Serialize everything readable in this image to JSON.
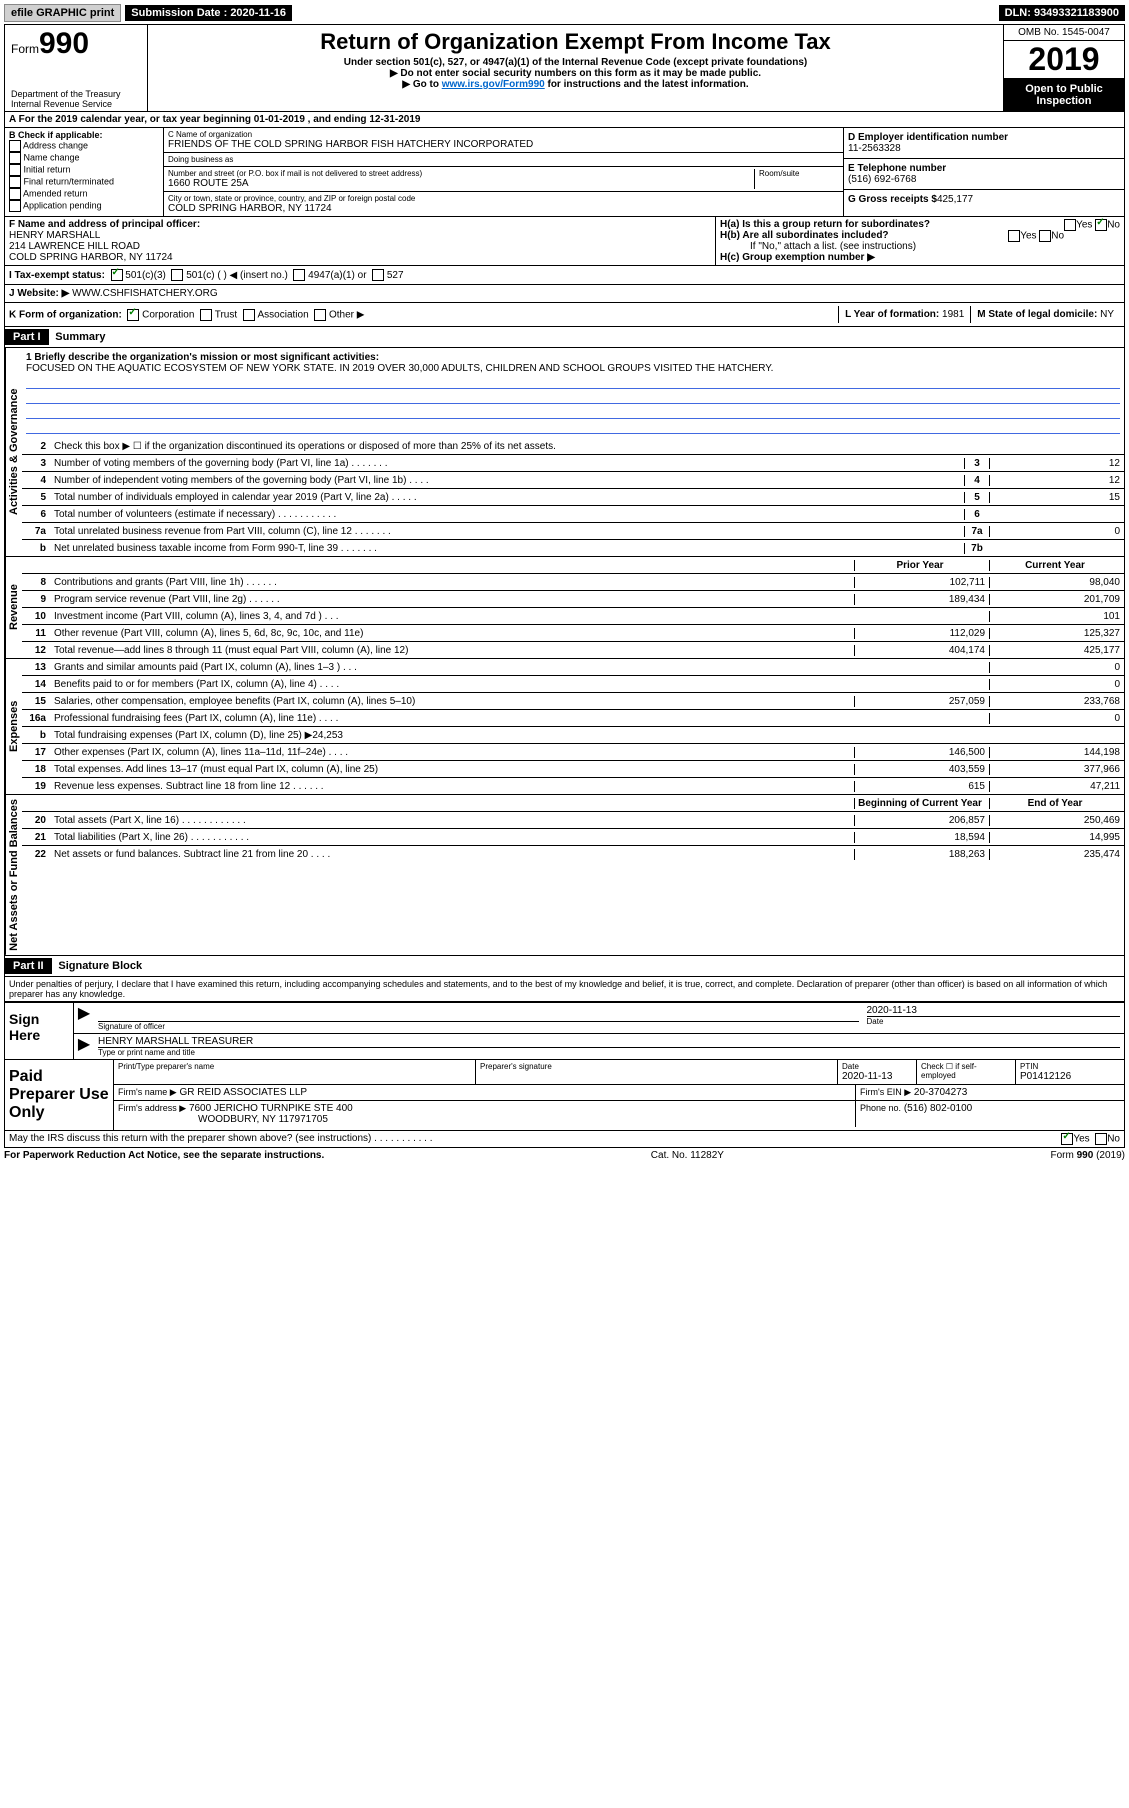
{
  "topbar": {
    "efile": "efile GRAPHIC print",
    "submission": "Submission Date : 2020-11-16",
    "dln": "DLN: 93493321183900"
  },
  "header": {
    "form_label": "Form",
    "form_num": "990",
    "dept": "Department of the Treasury\nInternal Revenue Service",
    "title": "Return of Organization Exempt From Income Tax",
    "sub1": "Under section 501(c), 527, or 4947(a)(1) of the Internal Revenue Code (except private foundations)",
    "sub2": "▶ Do not enter social security numbers on this form as it may be made public.",
    "sub3_pre": "▶ Go to ",
    "sub3_link": "www.irs.gov/Form990",
    "sub3_post": " for instructions and the latest information.",
    "omb": "OMB No. 1545-0047",
    "year": "2019",
    "open": "Open to Public Inspection"
  },
  "row_a": "A For the 2019 calendar year, or tax year beginning 01-01-2019    , and ending 12-31-2019",
  "col_b": {
    "label": "B Check if applicable:",
    "opts": [
      "Address change",
      "Name change",
      "Initial return",
      "Final return/terminated",
      "Amended return",
      "Application pending"
    ]
  },
  "col_c": {
    "name_label": "C Name of organization",
    "name": "FRIENDS OF THE COLD SPRING HARBOR FISH HATCHERY INCORPORATED",
    "dba_label": "Doing business as",
    "dba": "",
    "addr_label": "Number and street (or P.O. box if mail is not delivered to street address)",
    "room_label": "Room/suite",
    "addr": "1660 ROUTE 25A",
    "city_label": "City or town, state or province, country, and ZIP or foreign postal code",
    "city": "COLD SPRING HARBOR, NY  11724"
  },
  "col_d": {
    "ein_label": "D Employer identification number",
    "ein": "11-2563328",
    "phone_label": "E Telephone number",
    "phone": "(516) 692-6768",
    "gross_label": "G Gross receipts $",
    "gross": "425,177"
  },
  "col_f": {
    "label": "F Name and address of principal officer:",
    "name": "HENRY MARSHALL",
    "addr1": "214 LAWRENCE HILL ROAD",
    "addr2": "COLD SPRING HARBOR, NY  11724"
  },
  "col_h": {
    "ha": "H(a)  Is this a group return for subordinates?",
    "hb": "H(b)  Are all subordinates included?",
    "hb_note": "If \"No,\" attach a list. (see instructions)",
    "hc": "H(c)  Group exemption number ▶",
    "yes": "Yes",
    "no": "No"
  },
  "row_i": {
    "label": "I  Tax-exempt status:",
    "opt1": "501(c)(3)",
    "opt2": "501(c) (   ) ◀ (insert no.)",
    "opt3": "4947(a)(1) or",
    "opt4": "527"
  },
  "row_j": {
    "label": "J  Website: ▶",
    "val": "WWW.CSHFISHATCHERY.ORG"
  },
  "row_k": {
    "label": "K Form of organization:",
    "opts": [
      "Corporation",
      "Trust",
      "Association",
      "Other ▶"
    ],
    "l_label": "L Year of formation:",
    "l_val": "1981",
    "m_label": "M State of legal domicile:",
    "m_val": "NY"
  },
  "part1": {
    "header": "Part I",
    "title": "Summary",
    "line1_label": "1  Briefly describe the organization's mission or most significant activities:",
    "line1_val": "FOCUSED ON THE AQUATIC ECOSYSTEM OF NEW YORK STATE. IN 2019 OVER 30,000 ADULTS, CHILDREN AND SCHOOL GROUPS VISITED THE HATCHERY.",
    "line2": "Check this box ▶ ☐  if the organization discontinued its operations or disposed of more than 25% of its net assets.",
    "sections": {
      "activities": "Activities & Governance",
      "revenue": "Revenue",
      "expenses": "Expenses",
      "netassets": "Net Assets or Fund Balances"
    },
    "col_prior": "Prior Year",
    "col_current": "Current Year",
    "col_begin": "Beginning of Current Year",
    "col_end": "End of Year",
    "lines_gov": [
      {
        "n": "3",
        "d": "Number of voting members of the governing body (Part VI, line 1a)  .    .    .    .    .    .    .",
        "box": "3",
        "v": "12"
      },
      {
        "n": "4",
        "d": "Number of independent voting members of the governing body (Part VI, line 1b)  .    .    .    .",
        "box": "4",
        "v": "12"
      },
      {
        "n": "5",
        "d": "Total number of individuals employed in calendar year 2019 (Part V, line 2a)  .    .    .    .    .",
        "box": "5",
        "v": "15"
      },
      {
        "n": "6",
        "d": "Total number of volunteers (estimate if necessary)    .    .    .    .    .    .    .    .    .    .    .",
        "box": "6",
        "v": ""
      },
      {
        "n": "7a",
        "d": "Total unrelated business revenue from Part VIII, column (C), line 12  .    .    .    .    .    .    .",
        "box": "7a",
        "v": "0"
      },
      {
        "n": "b",
        "d": "Net unrelated business taxable income from Form 990-T, line 39    .    .    .    .    .    .    .",
        "box": "7b",
        "v": ""
      }
    ],
    "lines_rev": [
      {
        "n": "8",
        "d": "Contributions and grants (Part VIII, line 1h)    .    .    .    .    .    .",
        "p": "102,711",
        "c": "98,040"
      },
      {
        "n": "9",
        "d": "Program service revenue (Part VIII, line 2g)    .    .    .    .    .    .",
        "p": "189,434",
        "c": "201,709"
      },
      {
        "n": "10",
        "d": "Investment income (Part VIII, column (A), lines 3, 4, and 7d )    .    .    .",
        "p": "",
        "c": "101"
      },
      {
        "n": "11",
        "d": "Other revenue (Part VIII, column (A), lines 5, 6d, 8c, 9c, 10c, and 11e)",
        "p": "112,029",
        "c": "125,327"
      },
      {
        "n": "12",
        "d": "Total revenue—add lines 8 through 11 (must equal Part VIII, column (A), line 12)",
        "p": "404,174",
        "c": "425,177"
      }
    ],
    "lines_exp": [
      {
        "n": "13",
        "d": "Grants and similar amounts paid (Part IX, column (A), lines 1–3 )  .    .    .",
        "p": "",
        "c": "0"
      },
      {
        "n": "14",
        "d": "Benefits paid to or for members (Part IX, column (A), line 4)  .    .    .    .",
        "p": "",
        "c": "0"
      },
      {
        "n": "15",
        "d": "Salaries, other compensation, employee benefits (Part IX, column (A), lines 5–10)",
        "p": "257,059",
        "c": "233,768"
      },
      {
        "n": "16a",
        "d": "Professional fundraising fees (Part IX, column (A), line 11e)  .    .    .    .",
        "p": "",
        "c": "0"
      },
      {
        "n": "b",
        "d": "Total fundraising expenses (Part IX, column (D), line 25) ▶24,253",
        "p": "shaded",
        "c": "shaded"
      },
      {
        "n": "17",
        "d": "Other expenses (Part IX, column (A), lines 11a–11d, 11f–24e)  .    .    .    .",
        "p": "146,500",
        "c": "144,198"
      },
      {
        "n": "18",
        "d": "Total expenses. Add lines 13–17 (must equal Part IX, column (A), line 25)",
        "p": "403,559",
        "c": "377,966"
      },
      {
        "n": "19",
        "d": "Revenue less expenses. Subtract line 18 from line 12  .    .    .    .    .    .",
        "p": "615",
        "c": "47,211"
      }
    ],
    "lines_net": [
      {
        "n": "20",
        "d": "Total assets (Part X, line 16)  .    .    .    .    .    .    .    .    .    .    .    .",
        "p": "206,857",
        "c": "250,469"
      },
      {
        "n": "21",
        "d": "Total liabilities (Part X, line 26)  .    .    .    .    .    .    .    .    .    .    .",
        "p": "18,594",
        "c": "14,995"
      },
      {
        "n": "22",
        "d": "Net assets or fund balances. Subtract line 21 from line 20    .    .    .    .",
        "p": "188,263",
        "c": "235,474"
      }
    ]
  },
  "part2": {
    "header": "Part II",
    "title": "Signature Block",
    "penalty": "Under penalties of perjury, I declare that I have examined this return, including accompanying schedules and statements, and to the best of my knowledge and belief, it is true, correct, and complete. Declaration of preparer (other than officer) is based on all information of which preparer has any knowledge.",
    "sign_here": "Sign Here",
    "sig_officer": "Signature of officer",
    "sig_date": "2020-11-13",
    "date_label": "Date",
    "sig_name": "HENRY MARSHALL  TREASURER",
    "sig_name_label": "Type or print name and title",
    "paid": "Paid Preparer Use Only",
    "prep_name_label": "Print/Type preparer's name",
    "prep_sig_label": "Preparer's signature",
    "prep_date_label": "Date",
    "prep_date": "2020-11-13",
    "check_self": "Check ☐ if self-employed",
    "ptin_label": "PTIN",
    "ptin": "P01412126",
    "firm_name_label": "Firm's name    ▶",
    "firm_name": "GR REID ASSOCIATES LLP",
    "firm_ein_label": "Firm's EIN ▶",
    "firm_ein": "20-3704273",
    "firm_addr_label": "Firm's address ▶",
    "firm_addr1": "7600 JERICHO TURNPIKE STE 400",
    "firm_addr2": "WOODBURY, NY  117971705",
    "firm_phone_label": "Phone no.",
    "firm_phone": "(516) 802-0100",
    "discuss": "May the IRS discuss this return with the preparer shown above? (see instructions)    .    .    .    .    .    .    .    .    .    .    .",
    "yes": "Yes",
    "no": "No"
  },
  "footer": {
    "paperwork": "For Paperwork Reduction Act Notice, see the separate instructions.",
    "cat": "Cat. No. 11282Y",
    "form": "Form 990 (2019)"
  }
}
